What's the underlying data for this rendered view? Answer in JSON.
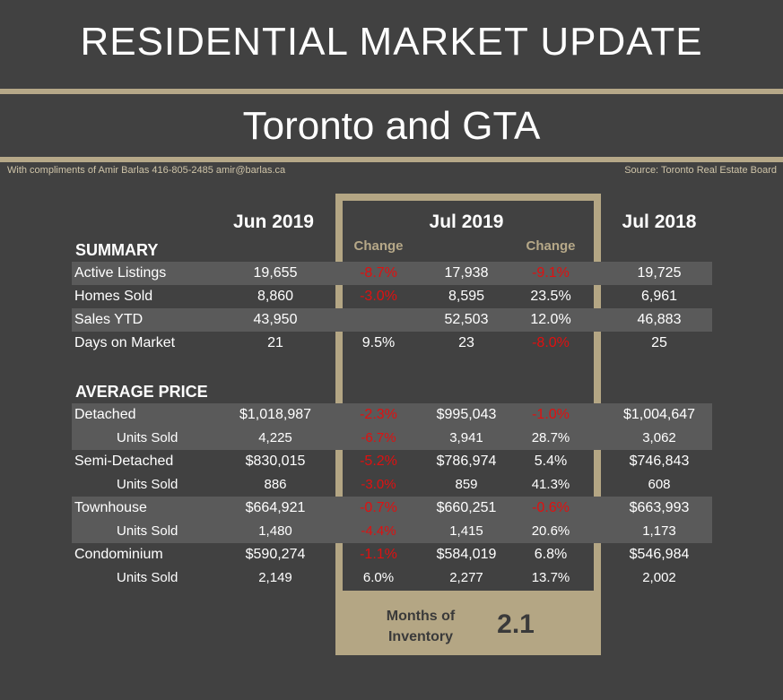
{
  "header": {
    "title": "RESIDENTIAL MARKET UPDATE",
    "subtitle": "Toronto and GTA",
    "credit": "With compliments of Amir Barlas 416-805-2485 amir@barlas.ca",
    "source": "Source: Toronto Real Estate Board"
  },
  "columns": {
    "jun": "Jun 2019",
    "jul": "Jul 2019",
    "jul18": "Jul 2018",
    "change1": "Change",
    "change2": "Change"
  },
  "sections": {
    "summary": "SUMMARY",
    "avg_price": "AVERAGE PRICE"
  },
  "rows": [
    {
      "label": "Active Listings",
      "jun": "19,655",
      "ch1": "-8.7%",
      "jul": "17,938",
      "ch2": "-9.1%",
      "jul18": "19,725"
    },
    {
      "label": "Homes Sold",
      "jun": "8,860",
      "ch1": "-3.0%",
      "jul": "8,595",
      "ch2": "23.5%",
      "jul18": "6,961"
    },
    {
      "label": "Sales YTD",
      "jun": "43,950",
      "ch1": "",
      "jul": "52,503",
      "ch2": "12.0%",
      "jul18": "46,883"
    },
    {
      "label": "Days on Market",
      "jun": "21",
      "ch1": "9.5%",
      "jul": "23",
      "ch2": "-8.0%",
      "jul18": "25"
    },
    {
      "label": "Detached",
      "jun": "$1,018,987",
      "ch1": "-2.3%",
      "jul": "$995,043",
      "ch2": "-1.0%",
      "jul18": "$1,004,647"
    },
    {
      "label": "Units Sold",
      "jun": "4,225",
      "ch1": "-6.7%",
      "jul": "3,941",
      "ch2": "28.7%",
      "jul18": "3,062"
    },
    {
      "label": "Semi-Detached",
      "jun": "$830,015",
      "ch1": "-5.2%",
      "jul": "$786,974",
      "ch2": "5.4%",
      "jul18": "$746,843"
    },
    {
      "label": "Units Sold",
      "jun": "886",
      "ch1": "-3.0%",
      "jul": "859",
      "ch2": "41.3%",
      "jul18": "608"
    },
    {
      "label": "Townhouse",
      "jun": "$664,921",
      "ch1": "-0.7%",
      "jul": "$660,251",
      "ch2": "-0.6%",
      "jul18": "$663,993"
    },
    {
      "label": "Units Sold",
      "jun": "1,480",
      "ch1": "-4.4%",
      "jul": "1,415",
      "ch2": "20.6%",
      "jul18": "1,173"
    },
    {
      "label": "Condominium",
      "jun": "$590,274",
      "ch1": "-1.1%",
      "jul": "$584,019",
      "ch2": "6.8%",
      "jul18": "$546,984"
    },
    {
      "label": "Units Sold",
      "jun": "2,149",
      "ch1": "6.0%",
      "jul": "2,277",
      "ch2": "13.7%",
      "jul18": "2,002"
    }
  ],
  "months_of_inventory": {
    "label": "Months of Inventory",
    "value": "2.1"
  },
  "colors": {
    "background": "#414141",
    "accent": "#b6a888",
    "negative": "#e01010",
    "shade": "#5a5a5a"
  }
}
